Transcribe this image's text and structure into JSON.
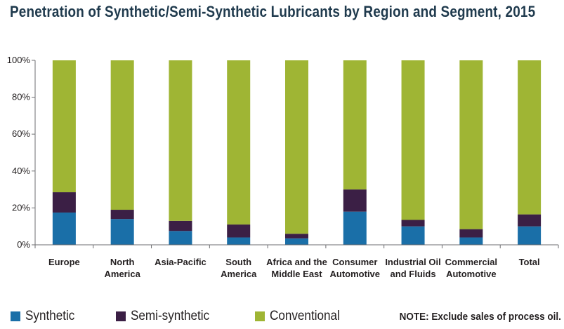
{
  "chart_data": {
    "type": "bar",
    "stacked": true,
    "title": "Penetration of Synthetic/Semi-Synthetic Lubricants by Region and Segment, 2015",
    "xlabel": "",
    "ylabel": "",
    "ylim": [
      0,
      100
    ],
    "y_ticks": [
      "0%",
      "20%",
      "40%",
      "60%",
      "80%",
      "100%"
    ],
    "categories": [
      [
        "Europe"
      ],
      [
        "North",
        "America"
      ],
      [
        "Asia-Pacific"
      ],
      [
        "South",
        "America"
      ],
      [
        "Africa and the",
        "Middle East"
      ],
      [
        "Consumer",
        "Automotive"
      ],
      [
        "Industrial Oil",
        "and Fluids"
      ],
      [
        "Commercial",
        "Automotive"
      ],
      [
        "Total"
      ]
    ],
    "series": [
      {
        "name": "Synthetic",
        "color": "#1a6fa8",
        "values": [
          17.5,
          14,
          7.5,
          4,
          3.5,
          18,
          10,
          4,
          10
        ]
      },
      {
        "name": "Semi-synthetic",
        "color": "#3b1f45",
        "values": [
          11,
          5,
          5.5,
          7,
          2.5,
          12,
          3.5,
          4.5,
          6.5
        ]
      },
      {
        "name": "Conventional",
        "color": "#9fb534",
        "values": [
          71.5,
          81,
          87,
          89,
          94,
          70,
          86.5,
          91.5,
          83.5
        ]
      }
    ],
    "legend_position": "bottom-left",
    "grid": false
  },
  "note": "NOTE: Exclude sales of process oil."
}
